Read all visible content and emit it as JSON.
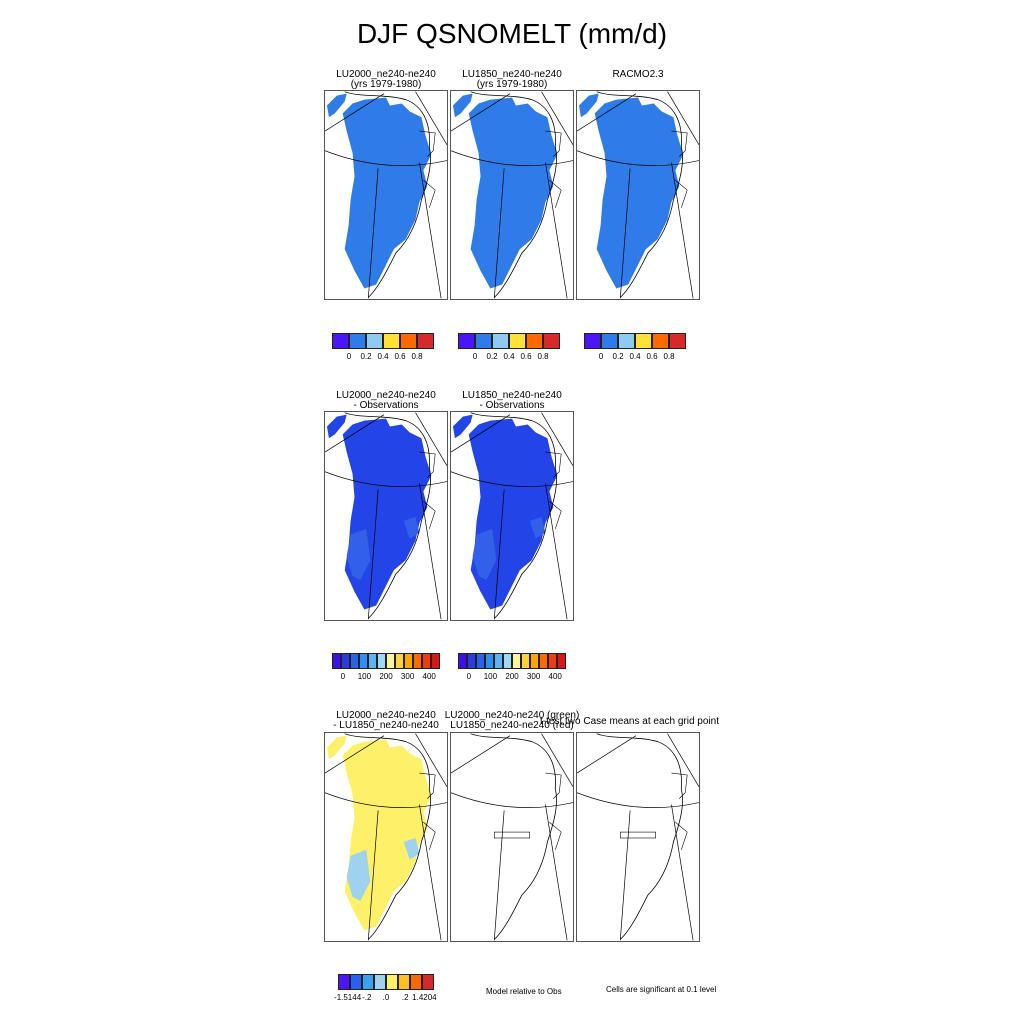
{
  "title": "DJF QSNOMELT (mm/d)",
  "row1": {
    "panels": [
      {
        "title1": "LU2000_ne240-ne240",
        "title2": "(yrs 1979-1980)",
        "fill": "#2f7ce8"
      },
      {
        "title1": "LU1850_ne240-ne240",
        "title2": "(yrs 1979-1980)",
        "fill": "#2f7ce8"
      },
      {
        "title1": "",
        "title2": "RACMO2.3",
        "fill": "#2f7ce8"
      }
    ],
    "colorbar": {
      "colors": [
        "#4a16f5",
        "#2f7ce8",
        "#8fcbf0",
        "#ffe13a",
        "#ff6a00",
        "#d62a2a"
      ],
      "labels": [
        "0",
        "0.2",
        "0.4",
        "0.6",
        "0.8"
      ]
    }
  },
  "row2": {
    "panels": [
      {
        "title1": "LU2000_ne240-ne240",
        "title2": "- Observations",
        "fill": "#2344e6",
        "patch": "#3360e8"
      },
      {
        "title1": "LU1850_ne240-ne240",
        "title2": "- Observations",
        "fill": "#2344e6",
        "patch": "#3360e8"
      }
    ],
    "colorbar": {
      "colors": [
        "#3d12e6",
        "#2a3ce0",
        "#2e62e6",
        "#2d8ff0",
        "#5bb3f0",
        "#9fd8f5",
        "#f8f4a0",
        "#ffd23c",
        "#ffa500",
        "#ff6a00",
        "#f03a10",
        "#d61818"
      ],
      "labels": [
        "0",
        "100",
        "200",
        "300",
        "400"
      ]
    }
  },
  "row3": {
    "panels": [
      {
        "title1": "LU2000_ne240-ne240",
        "title2": "- LU1850_ne240-ne240",
        "fill": "#fff06a",
        "patch": "#9fd2ef"
      },
      {
        "title1": "LU2000_ne240-ne240 (green)",
        "title2": "LU1850_ne240-ne240 (red)",
        "fill": "none"
      },
      {
        "title1": "",
        "title2": "",
        "fill": "none"
      }
    ],
    "sig_title": "t-test two Case means at each grid point",
    "colorbar": {
      "colors": [
        "#4a16f5",
        "#2a5ff0",
        "#3aa0f0",
        "#9fd2ef",
        "#fff06a",
        "#ffc020",
        "#ff6a00",
        "#d62a2a"
      ],
      "labels": [
        "-1.5144",
        "-.2",
        ".0",
        ".2",
        "1.4204"
      ]
    },
    "note_model": "Model relative to Obs",
    "note_cells": "Cells are significant at 0.1 level"
  }
}
